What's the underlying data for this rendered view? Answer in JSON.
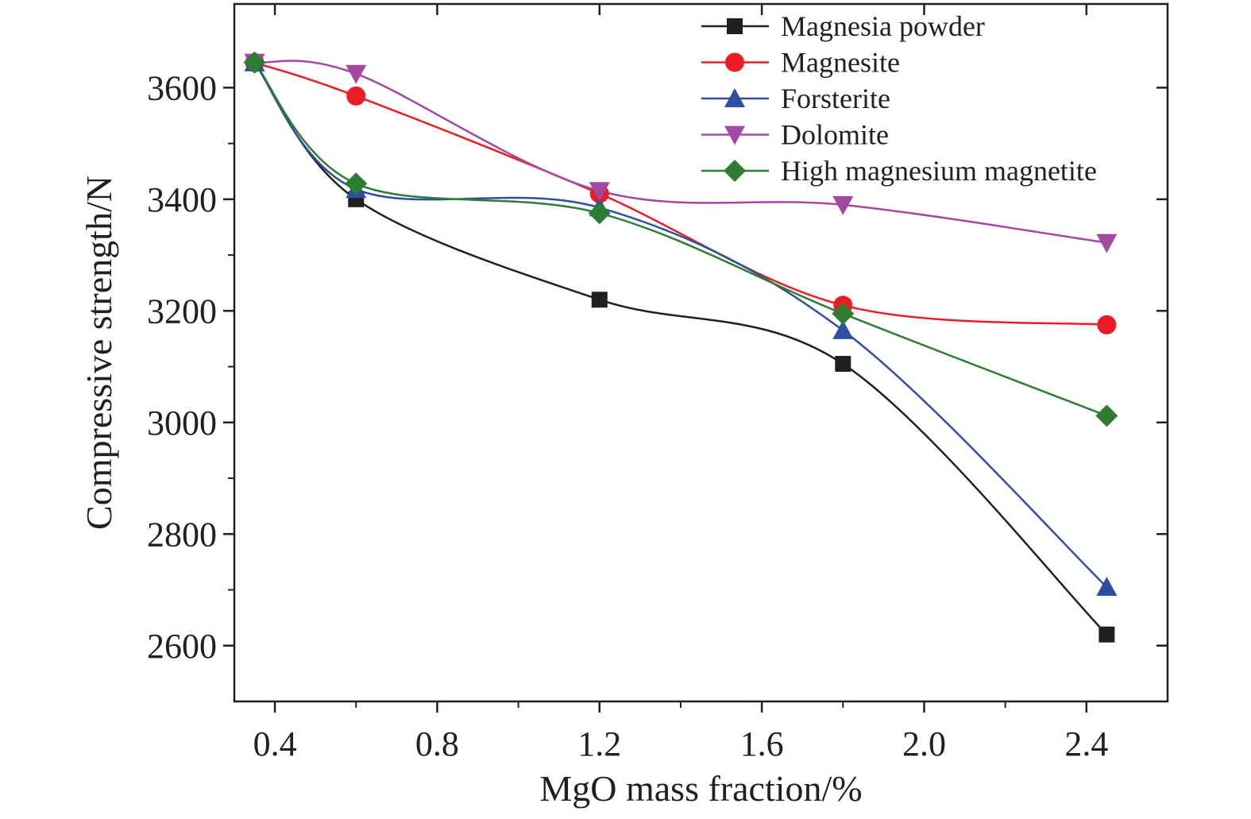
{
  "chart_data": {
    "type": "line",
    "xlabel": "MgO mass fraction/%",
    "ylabel": "Compressive strength/N",
    "xlim": [
      0.3,
      2.6
    ],
    "ylim": [
      2500,
      3750
    ],
    "xticks": [
      0.4,
      0.8,
      1.2,
      1.6,
      2.0,
      2.4
    ],
    "xtick_labels": [
      "0.4",
      "0.8",
      "1.2",
      "1.6",
      "2.0",
      "2.4"
    ],
    "yticks": [
      2600,
      2800,
      3000,
      3200,
      3400,
      3600
    ],
    "ytick_labels": [
      "2600",
      "2800",
      "3000",
      "3200",
      "3400",
      "3600"
    ],
    "grid": false,
    "legend_position": "top-right",
    "x": [
      0.35,
      0.6,
      1.2,
      1.8,
      2.45
    ],
    "series": [
      {
        "name": "Magnesia powder",
        "marker": "square",
        "color": "#231f20",
        "values": [
          3645,
          3400,
          3220,
          3105,
          2620
        ]
      },
      {
        "name": "Magnesite",
        "marker": "circle",
        "color": "#ed1c24",
        "values": [
          3645,
          3585,
          3410,
          3210,
          3175
        ]
      },
      {
        "name": "Forsterite",
        "marker": "triangle-up",
        "color": "#2e4ea1",
        "values": [
          3645,
          3418,
          3385,
          3165,
          2705
        ]
      },
      {
        "name": "Dolomite",
        "marker": "triangle-down",
        "color": "#a349a4",
        "values": [
          3645,
          3625,
          3415,
          3390,
          3322
        ]
      },
      {
        "name": "High magnesium magnetite",
        "marker": "diamond",
        "color": "#2d7d32",
        "values": [
          3645,
          3428,
          3375,
          3195,
          3012
        ]
      }
    ]
  }
}
